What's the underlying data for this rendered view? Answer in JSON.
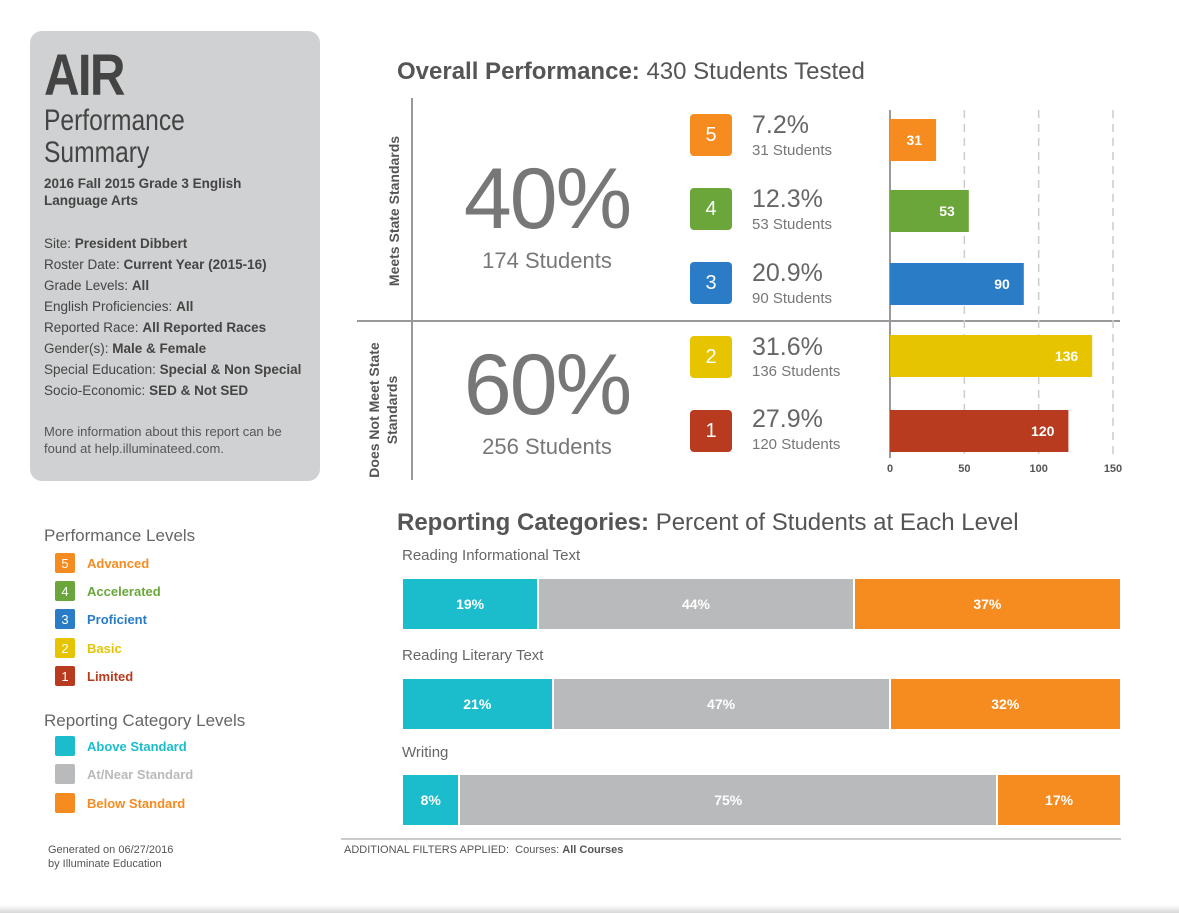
{
  "panel": {
    "title": "AIR",
    "subtitle_line1": "Performance",
    "subtitle_line2": "Summary",
    "report_name": "2016 Fall 2015 Grade 3 English Language Arts",
    "filters": [
      {
        "label": "Site:",
        "value": "President Dibbert"
      },
      {
        "label": "Roster Date:",
        "value": "Current Year (2015-16)"
      },
      {
        "label": "Grade Levels:",
        "value": "All"
      },
      {
        "label": "English Proficiencies:",
        "value": "All"
      },
      {
        "label": "Reported Race:",
        "value": "All Reported Races"
      },
      {
        "label": "Gender(s):",
        "value": "Male & Female"
      },
      {
        "label": "Special Education:",
        "value": "Special & Non Special"
      },
      {
        "label": "Socio-Economic:",
        "value": "SED & Not SED"
      }
    ],
    "more_info": "More information about this report can be found at help.illuminateed.com."
  },
  "legend": {
    "performance_title": "Performance Levels",
    "performance_levels": [
      {
        "num": "5",
        "label": "Advanced",
        "color": "#f68b1f"
      },
      {
        "num": "4",
        "label": "Accelerated",
        "color": "#6aa63a"
      },
      {
        "num": "3",
        "label": "Proficient",
        "color": "#2a7cc7"
      },
      {
        "num": "2",
        "label": "Basic",
        "color": "#e6c500"
      },
      {
        "num": "1",
        "label": "Limited",
        "color": "#b93b1f"
      }
    ],
    "category_title": "Reporting Category Levels",
    "category_levels": [
      {
        "label": "Above Standard",
        "color": "#1bbccc"
      },
      {
        "label": "At/Near Standard",
        "color": "#b9babb"
      },
      {
        "label": "Below Standard",
        "color": "#f68b1f"
      }
    ]
  },
  "footer": {
    "generated": "Generated on 06/27/2016",
    "generated_by": "by Illuminate Education",
    "filters_applied_label": "ADDITIONAL FILTERS APPLIED:",
    "filters_applied_value": "Courses:",
    "filters_applied_courses": "All Courses"
  },
  "overall": {
    "heading_bold": "Overall Performance:",
    "heading_rest": "430 Students Tested",
    "meets_label": "Meets State Standards",
    "not_meets_label": "Does Not Meet State Standards",
    "meets_pct": "40%",
    "meets_students": "174 Students",
    "not_meets_pct": "60%",
    "not_meets_students": "256 Students"
  },
  "chart_data": {
    "type": "bar",
    "orientation": "horizontal",
    "title": "Overall Performance: 430 Students Tested",
    "categories": [
      "5",
      "4",
      "3",
      "2",
      "1"
    ],
    "values": [
      31,
      53,
      90,
      136,
      120
    ],
    "percents": [
      "7.2%",
      "12.3%",
      "20.9%",
      "31.6%",
      "27.9%"
    ],
    "student_labels": [
      "31 Students",
      "53 Students",
      "90 Students",
      "136 Students",
      "120 Students"
    ],
    "colors": [
      "#f68b1f",
      "#6aa63a",
      "#2a7cc7",
      "#e6c500",
      "#b93b1f"
    ],
    "xlim": [
      0,
      150
    ],
    "xticks": [
      "0",
      "50",
      "100",
      "150"
    ],
    "grid": "dashed vertical"
  },
  "reporting": {
    "heading_bold": "Reporting Categories:",
    "heading_rest": "Percent of Students at Each Level",
    "categories": [
      {
        "name": "Reading Informational Text",
        "above": 19,
        "near": 44,
        "below": 37,
        "above_label": "19%",
        "near_label": "44%",
        "below_label": "37%"
      },
      {
        "name": "Reading Literary Text",
        "above": 21,
        "near": 47,
        "below": 32,
        "above_label": "21%",
        "near_label": "47%",
        "below_label": "32%"
      },
      {
        "name": "Writing",
        "above": 8,
        "near": 75,
        "below": 17,
        "above_label": "8%",
        "near_label": "75%",
        "below_label": "17%"
      }
    ]
  }
}
